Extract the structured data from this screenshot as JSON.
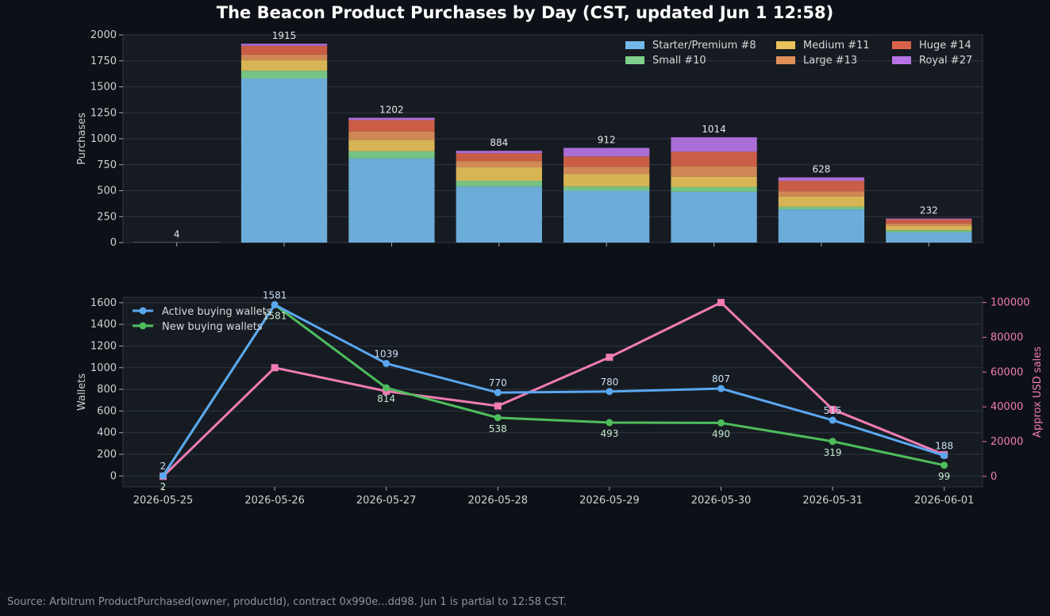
{
  "title": "The Beacon Product Purchases by Day (CST, updated Jun 1 12:58)",
  "source_note": "Source: Arbitrum ProductPurchased(owner, productId), contract 0x990e...dd98. Jun 1 is partial to 12:58 CST.",
  "colors": {
    "background": "#0d1117",
    "panel": "#161b22",
    "starter": "#74b9e8",
    "small": "#7fd18d",
    "medium": "#e8c25a",
    "large": "#e0915a",
    "huge": "#d9634a",
    "royal": "#b874e6",
    "active": "#5aa7f0",
    "new": "#4ebd5c",
    "usd": "#f07cb3"
  },
  "chart_data": [
    {
      "type": "bar",
      "stacked": true,
      "ylabel": "Purchases",
      "ylim": [
        0,
        2000
      ],
      "yticks": [
        0,
        250,
        500,
        750,
        1000,
        1250,
        1500,
        1750,
        2000
      ],
      "categories": [
        "2026-05-25",
        "2026-05-26",
        "2026-05-27",
        "2026-05-28",
        "2026-05-29",
        "2026-05-30",
        "2026-05-31",
        "2026-06-01"
      ],
      "totals": [
        4,
        1915,
        1202,
        884,
        912,
        1014,
        628,
        232
      ],
      "legend_position": "top-right",
      "grid": true,
      "series": [
        {
          "name": "Starter/Premium #8",
          "color_key": "starter",
          "values": [
            2,
            1580,
            810,
            540,
            500,
            490,
            320,
            100
          ]
        },
        {
          "name": "Small #10",
          "color_key": "small",
          "values": [
            0,
            75,
            70,
            55,
            40,
            45,
            25,
            20
          ]
        },
        {
          "name": "Medium #11",
          "color_key": "medium",
          "values": [
            1,
            100,
            110,
            130,
            120,
            100,
            100,
            40
          ]
        },
        {
          "name": "Large #13",
          "color_key": "large",
          "values": [
            0,
            55,
            80,
            60,
            70,
            100,
            50,
            25
          ]
        },
        {
          "name": "Huge #14",
          "color_key": "huge",
          "values": [
            1,
            85,
            110,
            75,
            100,
            140,
            100,
            40
          ]
        },
        {
          "name": "Royal #27",
          "color_key": "royal",
          "values": [
            0,
            20,
            22,
            24,
            82,
            139,
            33,
            7
          ]
        }
      ]
    },
    {
      "type": "line",
      "ylabel": "Wallets",
      "y2label": "Approx USD sales",
      "ylim": [
        -100,
        1650
      ],
      "yticks": [
        0,
        200,
        400,
        600,
        800,
        1000,
        1200,
        1400,
        1600
      ],
      "y2lim": [
        -6000,
        103000
      ],
      "y2ticks": [
        0,
        20000,
        40000,
        60000,
        80000,
        100000
      ],
      "x": [
        "2026-05-25",
        "2026-05-26",
        "2026-05-27",
        "2026-05-28",
        "2026-05-29",
        "2026-05-30",
        "2026-05-31",
        "2026-06-01"
      ],
      "legend_position": "top-left",
      "grid": true,
      "series": [
        {
          "name": "Active buying wallets",
          "color_key": "active",
          "axis": "left",
          "marker": "circle",
          "labels": true,
          "values": [
            2,
            1581,
            1039,
            770,
            780,
            807,
            515,
            188
          ]
        },
        {
          "name": "New buying wallets",
          "color_key": "new",
          "axis": "left",
          "marker": "circle",
          "labels": true,
          "values": [
            2,
            1581,
            814,
            538,
            493,
            490,
            319,
            99
          ]
        },
        {
          "color_key": "usd",
          "axis": "right",
          "marker": "square",
          "labels": false,
          "values": [
            0,
            62500,
            49000,
            40500,
            68500,
            100000,
            38500,
            12500
          ]
        }
      ]
    }
  ]
}
